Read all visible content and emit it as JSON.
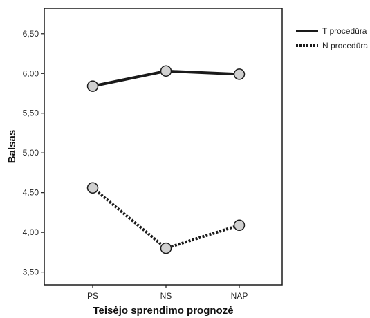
{
  "chart_data": {
    "type": "line",
    "categories": [
      "PS",
      "NS",
      "NAP"
    ],
    "series": [
      {
        "name": "T procedūra",
        "values": [
          5.84,
          6.03,
          5.99
        ],
        "style": "solid"
      },
      {
        "name": "N procedūra",
        "values": [
          4.56,
          3.8,
          4.09
        ],
        "style": "dotted"
      }
    ],
    "xlabel": "Teisėjo sprendimo prognozė",
    "ylabel": "Balsas",
    "ylim": [
      3.34,
      6.82
    ],
    "yticks": [
      "3,50",
      "4,00",
      "4,50",
      "5,00",
      "5,50",
      "6,00",
      "6,50"
    ],
    "ytick_values": [
      3.5,
      4.0,
      4.5,
      5.0,
      5.5,
      6.0,
      6.5
    ],
    "grid": false,
    "legend_position": "top-right",
    "colors": {
      "line": "#1a1a1a",
      "marker_fill": "#d0d0d0",
      "marker_stroke": "#1a1a1a",
      "frame": "#1a1a1a"
    }
  }
}
